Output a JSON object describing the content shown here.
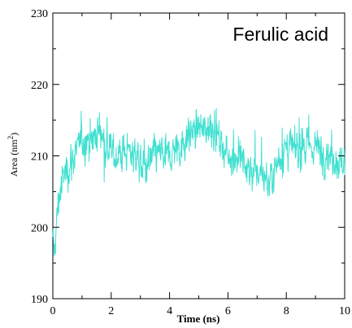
{
  "chart_data": {
    "type": "line",
    "annotation": "Ferulic acid",
    "xlabel": "Time (ns)",
    "ylabel_main": "Area (nm",
    "ylabel_sup": "2",
    "ylabel_close": ")",
    "xlim": [
      0,
      10
    ],
    "ylim": [
      190,
      230
    ],
    "xticks": [
      0,
      2,
      4,
      6,
      8,
      10
    ],
    "yticks": [
      190,
      200,
      210,
      220,
      230
    ],
    "grid": false,
    "series": [
      {
        "color": "#40e0d0",
        "anchors": [
          [
            0.0,
            197.0
          ],
          [
            0.05,
            196.5
          ],
          [
            0.1,
            199.0
          ],
          [
            0.15,
            201.5
          ],
          [
            0.2,
            204.0
          ],
          [
            0.3,
            206.0
          ],
          [
            0.4,
            207.5
          ],
          [
            0.6,
            209.0
          ],
          [
            0.8,
            210.5
          ],
          [
            1.0,
            212.0
          ],
          [
            1.2,
            212.5
          ],
          [
            1.4,
            212.5
          ],
          [
            1.6,
            213.5
          ],
          [
            1.7,
            213.0
          ],
          [
            1.85,
            211.0
          ],
          [
            2.0,
            210.5
          ],
          [
            2.2,
            210.0
          ],
          [
            2.5,
            210.5
          ],
          [
            2.8,
            210.5
          ],
          [
            3.0,
            209.0
          ],
          [
            3.2,
            208.5
          ],
          [
            3.4,
            209.5
          ],
          [
            3.6,
            210.5
          ],
          [
            3.8,
            210.0
          ],
          [
            4.0,
            210.0
          ],
          [
            4.2,
            211.0
          ],
          [
            4.4,
            211.5
          ],
          [
            4.6,
            212.5
          ],
          [
            4.8,
            213.5
          ],
          [
            5.0,
            214.0
          ],
          [
            5.2,
            213.5
          ],
          [
            5.4,
            214.5
          ],
          [
            5.6,
            213.5
          ],
          [
            5.8,
            211.5
          ],
          [
            6.0,
            210.0
          ],
          [
            6.2,
            210.5
          ],
          [
            6.4,
            209.5
          ],
          [
            6.6,
            208.5
          ],
          [
            6.8,
            208.0
          ],
          [
            7.0,
            207.5
          ],
          [
            7.2,
            207.5
          ],
          [
            7.4,
            206.0
          ],
          [
            7.6,
            208.5
          ],
          [
            7.8,
            210.0
          ],
          [
            8.0,
            211.0
          ],
          [
            8.2,
            211.0
          ],
          [
            8.4,
            210.5
          ],
          [
            8.6,
            211.5
          ],
          [
            8.8,
            211.0
          ],
          [
            9.0,
            211.5
          ],
          [
            9.2,
            210.5
          ],
          [
            9.4,
            210.5
          ],
          [
            9.6,
            210.0
          ],
          [
            9.8,
            209.0
          ],
          [
            10.0,
            209.5
          ]
        ],
        "noise": 2.2,
        "samples": 1000
      }
    ]
  }
}
